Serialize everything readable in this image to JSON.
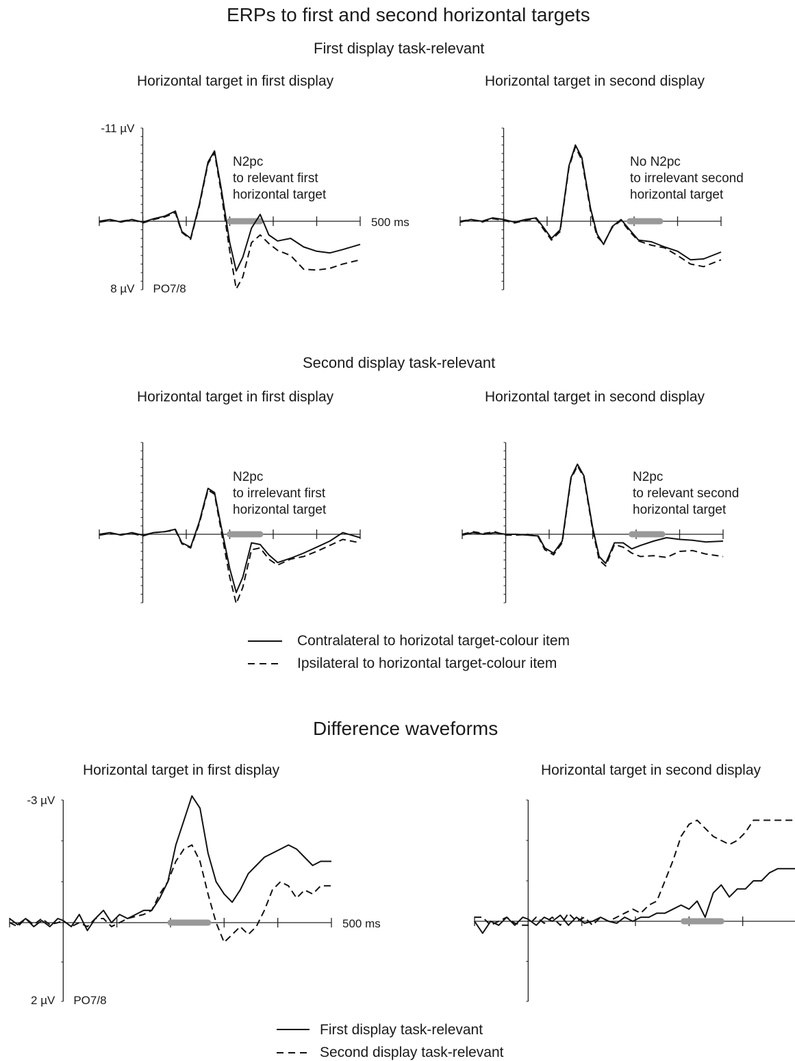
{
  "figure": {
    "title": "ERPs to first and second horizontal targets",
    "section1_title": "First display task-relevant",
    "section2_title": "Second display task-relevant",
    "section3_title": "Difference waveforms",
    "legend_erp": [
      "Contralateral to horizotal target-colour item",
      "Ipsilateral to horizontal target-colour item"
    ],
    "legend_diff": [
      "First display task-relevant",
      "Second display task-relevant"
    ],
    "colors": {
      "line": "#111111",
      "n2pc_window": "#999999",
      "axis": "#222222"
    }
  },
  "chart_data": [
    {
      "type": "line",
      "id": "s1_first",
      "title": "Horizontal target in first display",
      "annotation": [
        "N2pc",
        "to relevant first",
        "horizontal target"
      ],
      "ymax_label": "-11 µV",
      "ymin_label": "8 µV",
      "x_end_label": "500 ms",
      "electrode_label": "PO7/8",
      "xlim": [
        -100,
        500
      ],
      "ylim": [
        -11,
        8
      ],
      "y_negative_up": true,
      "n2pc_window": [
        200,
        270
      ],
      "x": [
        -100,
        -75,
        -50,
        -25,
        0,
        25,
        50,
        75,
        90,
        110,
        130,
        150,
        165,
        180,
        200,
        215,
        230,
        250,
        270,
        290,
        310,
        340,
        370,
        400,
        430,
        460,
        500
      ],
      "series": [
        {
          "line": "solid",
          "values": [
            0.0,
            -0.2,
            0.1,
            -0.2,
            0.1,
            -0.3,
            -0.6,
            -1.2,
            1.2,
            2.0,
            -2.0,
            -7.0,
            -8.3,
            -4.0,
            2.5,
            5.8,
            4.2,
            0.8,
            -0.8,
            1.6,
            2.3,
            2.0,
            3.0,
            3.5,
            3.7,
            3.3,
            2.7
          ]
        },
        {
          "line": "dashed",
          "values": [
            0.1,
            -0.1,
            0.0,
            -0.2,
            0.2,
            -0.2,
            -0.5,
            -1.0,
            1.3,
            2.1,
            -1.8,
            -6.8,
            -8.1,
            -3.5,
            3.5,
            7.9,
            6.5,
            2.5,
            1.6,
            2.6,
            3.4,
            4.0,
            5.6,
            5.7,
            5.5,
            5.0,
            4.5
          ]
        }
      ]
    },
    {
      "type": "line",
      "id": "s1_second",
      "title": "Horizontal target in second display",
      "annotation": [
        "No N2pc",
        "to irrelevant second",
        "horizontal target"
      ],
      "xlim": [
        -100,
        500
      ],
      "ylim": [
        -11,
        8
      ],
      "y_negative_up": true,
      "n2pc_window": [
        290,
        360
      ],
      "x": [
        -100,
        -75,
        -50,
        -25,
        0,
        25,
        50,
        75,
        90,
        110,
        130,
        150,
        165,
        180,
        200,
        215,
        230,
        250,
        270,
        290,
        310,
        340,
        370,
        400,
        430,
        460,
        500
      ],
      "series": [
        {
          "line": "solid",
          "values": [
            0.1,
            -0.2,
            0.0,
            -0.4,
            -0.2,
            0.1,
            -0.2,
            -0.4,
            0.6,
            2.0,
            1.0,
            -6.5,
            -9.0,
            -7.5,
            -1.5,
            1.5,
            2.7,
            0.6,
            -0.2,
            1.0,
            2.2,
            2.4,
            3.0,
            3.5,
            4.5,
            4.4,
            3.6
          ]
        },
        {
          "line": "dashed",
          "values": [
            0.0,
            -0.2,
            0.1,
            -0.3,
            -0.1,
            0.2,
            -0.1,
            -0.3,
            0.8,
            2.2,
            1.2,
            -6.3,
            -8.8,
            -7.2,
            -1.2,
            1.8,
            2.6,
            0.7,
            -0.1,
            1.2,
            2.3,
            2.8,
            3.1,
            4.0,
            5.0,
            5.3,
            4.5
          ]
        }
      ]
    },
    {
      "type": "line",
      "id": "s2_first",
      "title": "Horizontal target in first display",
      "annotation": [
        "N2pc",
        "to irrelevant first",
        "horizontal target"
      ],
      "xlim": [
        -100,
        500
      ],
      "ylim": [
        -11,
        8
      ],
      "y_negative_up": true,
      "n2pc_window": [
        200,
        270
      ],
      "x": [
        -100,
        -75,
        -50,
        -25,
        0,
        25,
        50,
        75,
        90,
        110,
        130,
        150,
        165,
        180,
        200,
        215,
        230,
        250,
        270,
        290,
        310,
        340,
        370,
        400,
        430,
        460,
        500
      ],
      "series": [
        {
          "line": "solid",
          "values": [
            0.0,
            -0.2,
            0.1,
            -0.2,
            0.1,
            -0.2,
            -0.3,
            -0.6,
            1.0,
            1.5,
            -1.5,
            -5.5,
            -5.0,
            -1.0,
            4.0,
            6.8,
            5.0,
            1.0,
            1.2,
            2.4,
            3.3,
            2.8,
            2.2,
            1.5,
            0.8,
            -0.2,
            0.4
          ]
        },
        {
          "line": "dashed",
          "values": [
            0.1,
            -0.1,
            0.0,
            -0.1,
            0.2,
            -0.2,
            -0.3,
            -0.5,
            1.1,
            1.6,
            -1.3,
            -5.3,
            -4.8,
            -0.5,
            5.0,
            8.1,
            6.2,
            1.8,
            1.6,
            2.9,
            3.6,
            2.9,
            2.6,
            2.0,
            1.3,
            0.6,
            1.0
          ]
        }
      ]
    },
    {
      "type": "line",
      "id": "s2_second",
      "title": "Horizontal target in second display",
      "annotation": [
        "N2pc",
        "to relevant second",
        "horizontal target"
      ],
      "xlim": [
        -100,
        500
      ],
      "ylim": [
        -11,
        8
      ],
      "y_negative_up": true,
      "n2pc_window": [
        290,
        360
      ],
      "x": [
        -100,
        -75,
        -50,
        -25,
        0,
        25,
        50,
        75,
        90,
        110,
        130,
        150,
        165,
        180,
        200,
        215,
        230,
        250,
        270,
        290,
        310,
        340,
        370,
        400,
        430,
        460,
        500
      ],
      "series": [
        {
          "line": "solid",
          "values": [
            0.1,
            -0.2,
            0.0,
            -0.2,
            0.0,
            0.0,
            0.1,
            0.2,
            1.6,
            2.2,
            0.8,
            -6.8,
            -8.4,
            -7.0,
            -0.8,
            2.6,
            3.4,
            1.0,
            1.0,
            1.7,
            1.3,
            0.8,
            0.4,
            0.6,
            0.7,
            0.9,
            0.8
          ]
        },
        {
          "line": "dashed",
          "values": [
            0.0,
            -0.3,
            -0.1,
            -0.3,
            0.1,
            0.1,
            0.0,
            0.3,
            1.8,
            2.4,
            1.0,
            -6.6,
            -8.2,
            -6.8,
            -0.5,
            3.0,
            3.7,
            1.2,
            1.5,
            2.2,
            2.6,
            2.5,
            2.7,
            2.0,
            1.9,
            2.3,
            2.6
          ]
        }
      ]
    },
    {
      "type": "line",
      "id": "diff_first",
      "title": "Horizontal target in first display",
      "ymax_label": "-3 µV",
      "ymin_label": "2 µV",
      "x_end_label": "500 ms",
      "electrode_label": "PO7/8",
      "xlim": [
        -100,
        500
      ],
      "ylim": [
        -3,
        2
      ],
      "y_negative_up": true,
      "n2pc_window": [
        200,
        270
      ],
      "x": [
        -100,
        -85,
        -70,
        -55,
        -40,
        -25,
        -10,
        0,
        15,
        30,
        45,
        60,
        75,
        90,
        105,
        120,
        135,
        150,
        165,
        180,
        195,
        210,
        225,
        240,
        255,
        270,
        285,
        300,
        315,
        330,
        345,
        360,
        375,
        390,
        405,
        420,
        435,
        450,
        465,
        480,
        500
      ],
      "series": [
        {
          "name": "First display task-relevant",
          "line": "solid",
          "values": [
            -0.1,
            0.05,
            -0.1,
            0.1,
            -0.05,
            0.1,
            -0.1,
            -0.05,
            0.1,
            -0.2,
            0.2,
            -0.1,
            -0.3,
            0.0,
            -0.2,
            -0.1,
            -0.2,
            -0.3,
            -0.3,
            -0.6,
            -1.0,
            -1.9,
            -2.5,
            -3.1,
            -2.8,
            -1.7,
            -1.0,
            -0.7,
            -0.5,
            -0.8,
            -1.2,
            -1.4,
            -1.6,
            -1.7,
            -1.8,
            -1.9,
            -1.8,
            -1.6,
            -1.4,
            -1.5,
            -1.5
          ]
        },
        {
          "name": "Second display task-relevant",
          "line": "dashed",
          "values": [
            0.0,
            0.1,
            -0.1,
            0.05,
            -0.1,
            0.05,
            0.0,
            -0.05,
            0.1,
            0.0,
            0.1,
            -0.1,
            -0.1,
            0.1,
            0.0,
            -0.1,
            -0.15,
            -0.2,
            -0.3,
            -0.7,
            -1.0,
            -1.5,
            -1.8,
            -1.9,
            -1.5,
            -0.7,
            0.0,
            0.5,
            0.3,
            0.1,
            0.3,
            0.1,
            -0.3,
            -0.8,
            -1.0,
            -0.9,
            -0.6,
            -0.8,
            -0.7,
            -0.9,
            -0.9
          ]
        }
      ]
    },
    {
      "type": "line",
      "id": "diff_second",
      "title": "Horizontal target in second display",
      "xlim": [
        -100,
        500
      ],
      "ylim": [
        -3,
        2
      ],
      "y_negative_up": true,
      "n2pc_window": [
        290,
        360
      ],
      "x": [
        -100,
        -85,
        -70,
        -55,
        -40,
        -25,
        -10,
        0,
        15,
        30,
        45,
        60,
        75,
        90,
        105,
        120,
        135,
        150,
        165,
        180,
        195,
        210,
        225,
        240,
        255,
        270,
        285,
        300,
        315,
        330,
        345,
        360,
        375,
        390,
        405,
        420,
        435,
        450,
        465,
        480,
        500
      ],
      "series": [
        {
          "name": "First display task-relevant",
          "line": "solid",
          "values": [
            0.0,
            0.3,
            0.0,
            0.1,
            -0.1,
            0.1,
            -0.1,
            -0.05,
            0.1,
            -0.1,
            0.0,
            -0.15,
            0.1,
            -0.1,
            0.05,
            0.0,
            -0.1,
            0.0,
            0.05,
            -0.1,
            0.0,
            -0.1,
            -0.1,
            -0.2,
            -0.2,
            -0.3,
            -0.4,
            -0.3,
            -0.5,
            -0.1,
            -0.7,
            -0.9,
            -0.6,
            -0.8,
            -0.8,
            -1.0,
            -1.0,
            -1.2,
            -1.3,
            -1.3,
            -1.3
          ]
        },
        {
          "name": "Second display task-relevant",
          "line": "dashed",
          "values": [
            -0.1,
            -0.1,
            0.1,
            0.0,
            -0.1,
            0.05,
            0.1,
            0.1,
            -0.1,
            0.05,
            -0.1,
            0.1,
            -0.2,
            0.0,
            -0.1,
            0.1,
            -0.1,
            0.0,
            -0.1,
            -0.2,
            -0.3,
            -0.2,
            -0.4,
            -0.5,
            -1.0,
            -1.5,
            -2.1,
            -2.4,
            -2.5,
            -2.3,
            -2.1,
            -2.0,
            -1.9,
            -2.0,
            -2.2,
            -2.5,
            -2.5,
            -2.5,
            -2.5,
            -2.5,
            -2.5
          ]
        }
      ]
    }
  ]
}
